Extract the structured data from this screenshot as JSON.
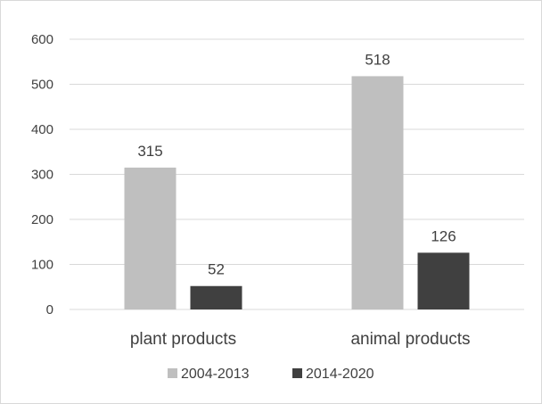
{
  "chart_data": {
    "type": "bar",
    "categories": [
      "plant products",
      "animal products"
    ],
    "series": [
      {
        "name": "2004-2013",
        "values": [
          315,
          518
        ],
        "color": "#bfbfbf"
      },
      {
        "name": "2014-2020",
        "values": [
          52,
          126
        ],
        "color": "#404040"
      }
    ],
    "yticks": [
      0,
      100,
      200,
      300,
      400,
      500,
      600
    ],
    "ylim": [
      0,
      600
    ],
    "grid": true,
    "legend_position": "bottom",
    "data_labels": true
  }
}
